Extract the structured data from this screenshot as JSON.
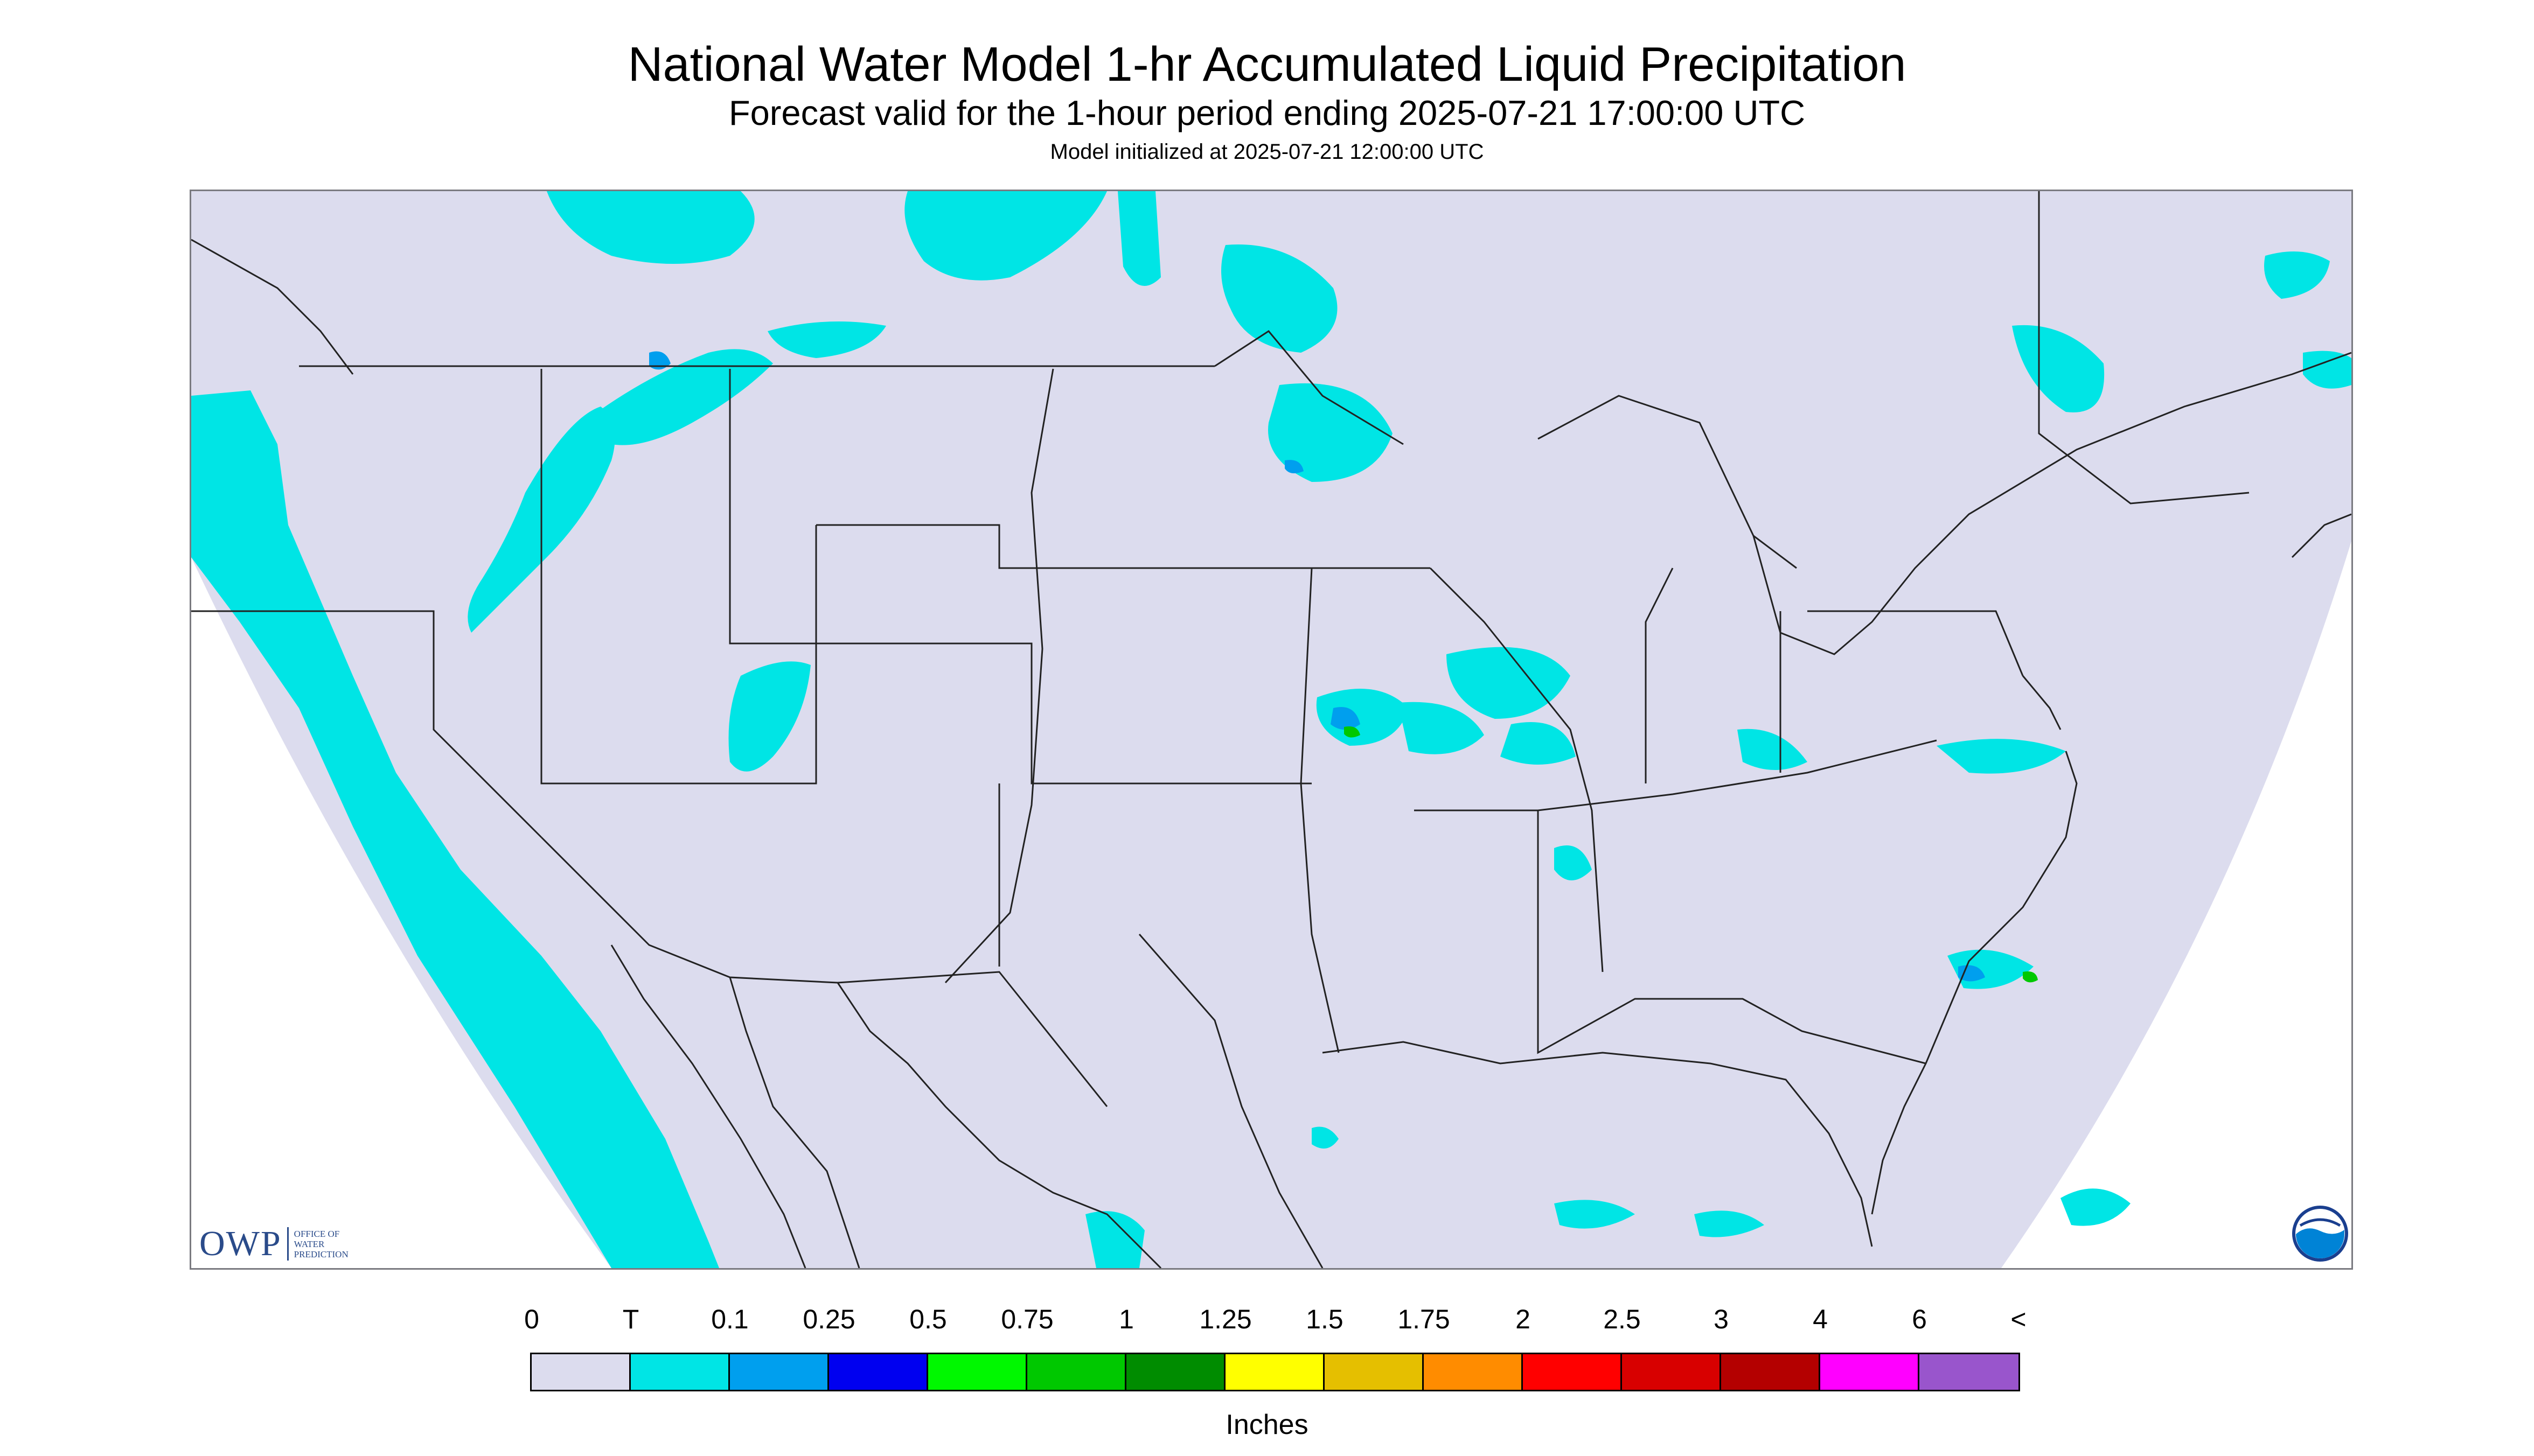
{
  "title": "National Water Model 1-hr Accumulated Liquid Precipitation",
  "subtitle": "Forecast valid for the 1-hour period ending 2025-07-21 17:00:00 UTC",
  "init_text": "Model initialized at 2025-07-21 12:00:00 UTC",
  "owp_logo": {
    "letters": "OWP",
    "line1": "OFFICE OF",
    "line2": "WATER",
    "line3": "PREDICTION"
  },
  "noaa_logo": "NOAA",
  "legend": {
    "labels": [
      "0",
      "T",
      "0.1",
      "0.25",
      "0.5",
      "0.75",
      "1",
      "1.25",
      "1.5",
      "1.75",
      "2",
      "2.5",
      "3",
      "4",
      "6",
      "<"
    ],
    "colors": [
      "#dcdcee",
      "#00e5e5",
      "#009fee",
      "#0000f0",
      "#00f800",
      "#00c800",
      "#008c00",
      "#ffff00",
      "#e5bf00",
      "#ff8c00",
      "#ff0000",
      "#d80000",
      "#b40000",
      "#ff00ff",
      "#9955cc"
    ],
    "units": "Inches"
  },
  "map_colors": {
    "background": "#dcdcee",
    "trace": "#00e5e5",
    "light": "#009fee",
    "moderate": "#00c800",
    "borders": "#222222"
  }
}
